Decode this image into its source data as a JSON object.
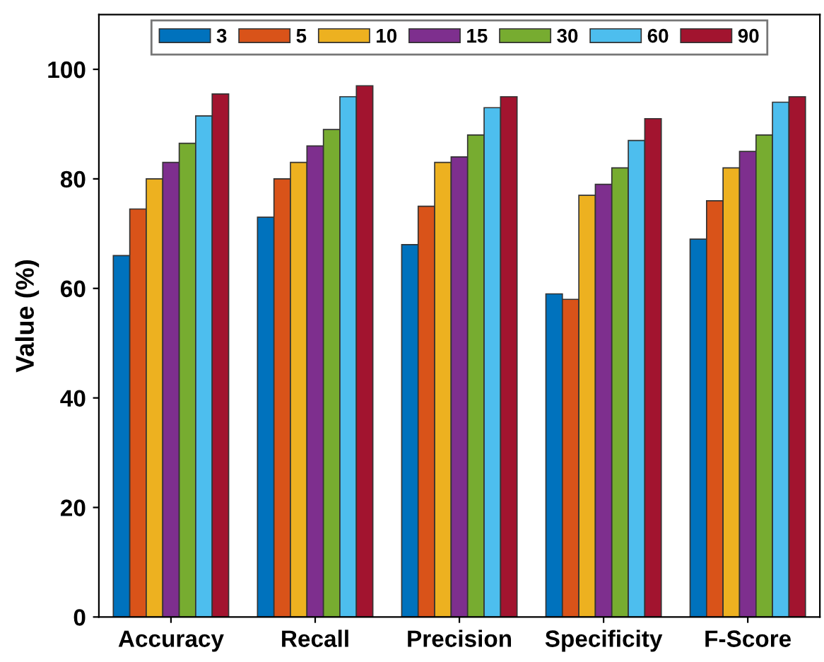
{
  "chart_data": {
    "type": "bar",
    "ylabel": "Value (%)",
    "categories": [
      "Accuracy",
      "Recall",
      "Precision",
      "Specificity",
      "F-Score"
    ],
    "series": [
      {
        "name": "3",
        "color": "#0072bd",
        "values": [
          66,
          73,
          68,
          59,
          69
        ]
      },
      {
        "name": "5",
        "color": "#d95319",
        "values": [
          74.5,
          80,
          75,
          58,
          76
        ]
      },
      {
        "name": "10",
        "color": "#edb120",
        "values": [
          80,
          83,
          83,
          77,
          82
        ]
      },
      {
        "name": "15",
        "color": "#7e2f8e",
        "values": [
          83,
          86,
          84,
          79,
          85
        ]
      },
      {
        "name": "30",
        "color": "#77ac30",
        "values": [
          86.5,
          89,
          88,
          82,
          88
        ]
      },
      {
        "name": "60",
        "color": "#4dbeee",
        "values": [
          91.5,
          95,
          93,
          87,
          94
        ]
      },
      {
        "name": "90",
        "color": "#a2142f",
        "values": [
          95.5,
          97,
          95,
          91,
          95
        ]
      }
    ],
    "ylim": [
      0,
      110
    ],
    "yticks": [
      0,
      20,
      40,
      60,
      80,
      100
    ],
    "grid": false,
    "legend": "top"
  }
}
